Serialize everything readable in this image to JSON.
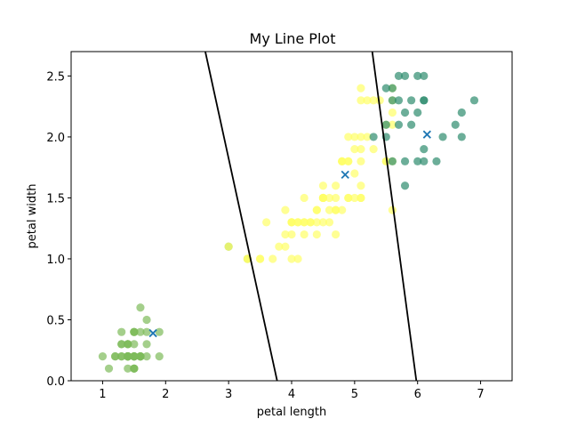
{
  "chart_data": {
    "type": "scatter",
    "title": "My Line Plot",
    "xlabel": "petal length",
    "ylabel": "petal width",
    "xlim": [
      0.5,
      7.5
    ],
    "ylim": [
      0.0,
      2.7
    ],
    "xticks": [
      1,
      2,
      3,
      4,
      5,
      6,
      7
    ],
    "yticks": [
      0.0,
      0.5,
      1.0,
      1.5,
      2.0,
      2.5
    ],
    "grid": false,
    "series": [
      {
        "color": "#7dbb5a",
        "points": [
          [
            1.4,
            0.2
          ],
          [
            1.4,
            0.2
          ],
          [
            1.3,
            0.2
          ],
          [
            1.5,
            0.2
          ],
          [
            1.4,
            0.2
          ],
          [
            1.7,
            0.4
          ],
          [
            1.4,
            0.3
          ],
          [
            1.5,
            0.2
          ],
          [
            1.4,
            0.2
          ],
          [
            1.5,
            0.1
          ],
          [
            1.5,
            0.2
          ],
          [
            1.6,
            0.2
          ],
          [
            1.4,
            0.1
          ],
          [
            1.1,
            0.1
          ],
          [
            1.2,
            0.2
          ],
          [
            1.5,
            0.4
          ],
          [
            1.3,
            0.4
          ],
          [
            1.4,
            0.3
          ],
          [
            1.7,
            0.3
          ],
          [
            1.5,
            0.3
          ],
          [
            1.7,
            0.2
          ],
          [
            1.5,
            0.4
          ],
          [
            1.0,
            0.2
          ],
          [
            1.7,
            0.5
          ],
          [
            1.9,
            0.2
          ],
          [
            1.6,
            0.2
          ],
          [
            1.6,
            0.4
          ],
          [
            1.5,
            0.2
          ],
          [
            1.4,
            0.2
          ],
          [
            1.6,
            0.2
          ],
          [
            1.6,
            0.2
          ],
          [
            1.5,
            0.4
          ],
          [
            1.5,
            0.1
          ],
          [
            1.4,
            0.2
          ],
          [
            1.5,
            0.1
          ],
          [
            1.2,
            0.2
          ],
          [
            1.3,
            0.2
          ],
          [
            1.3,
            0.3
          ],
          [
            1.3,
            0.3
          ],
          [
            1.6,
            0.6
          ],
          [
            1.9,
            0.4
          ],
          [
            1.4,
            0.3
          ],
          [
            1.6,
            0.2
          ],
          [
            1.4,
            0.2
          ],
          [
            1.5,
            0.2
          ],
          [
            1.4,
            0.2
          ],
          [
            3.0,
            1.1
          ],
          [
            3.3,
            1.0
          ]
        ]
      },
      {
        "color": "#ffff66",
        "points": [
          [
            4.7,
            1.4
          ],
          [
            4.5,
            1.5
          ],
          [
            4.9,
            1.5
          ],
          [
            4.0,
            1.3
          ],
          [
            4.6,
            1.5
          ],
          [
            4.5,
            1.3
          ],
          [
            4.7,
            1.6
          ],
          [
            3.3,
            1.0
          ],
          [
            4.6,
            1.3
          ],
          [
            3.9,
            1.4
          ],
          [
            3.5,
            1.0
          ],
          [
            4.2,
            1.5
          ],
          [
            4.0,
            1.0
          ],
          [
            4.7,
            1.4
          ],
          [
            3.6,
            1.3
          ],
          [
            4.4,
            1.4
          ],
          [
            4.5,
            1.5
          ],
          [
            4.1,
            1.0
          ],
          [
            4.5,
            1.5
          ],
          [
            3.9,
            1.1
          ],
          [
            4.8,
            1.8
          ],
          [
            4.0,
            1.3
          ],
          [
            4.9,
            1.5
          ],
          [
            4.7,
            1.2
          ],
          [
            4.3,
            1.3
          ],
          [
            4.4,
            1.4
          ],
          [
            4.8,
            1.4
          ],
          [
            5.0,
            1.7
          ],
          [
            4.5,
            1.5
          ],
          [
            3.5,
            1.0
          ],
          [
            3.8,
            1.1
          ],
          [
            3.7,
            1.0
          ],
          [
            3.9,
            1.2
          ],
          [
            5.1,
            1.6
          ],
          [
            4.5,
            1.5
          ],
          [
            4.5,
            1.6
          ],
          [
            4.7,
            1.5
          ],
          [
            4.4,
            1.3
          ],
          [
            4.1,
            1.3
          ],
          [
            4.0,
            1.3
          ],
          [
            4.4,
            1.2
          ],
          [
            4.6,
            1.4
          ],
          [
            4.0,
            1.2
          ],
          [
            3.3,
            1.0
          ],
          [
            4.2,
            1.3
          ],
          [
            4.2,
            1.2
          ],
          [
            4.2,
            1.3
          ],
          [
            4.3,
            1.3
          ],
          [
            3.0,
            1.1
          ],
          [
            4.1,
            1.3
          ],
          [
            5.1,
            2.4
          ],
          [
            5.1,
            1.9
          ],
          [
            5.3,
            2.3
          ],
          [
            5.1,
            2.0
          ],
          [
            5.0,
            2.0
          ],
          [
            5.1,
            1.5
          ],
          [
            5.5,
            1.8
          ],
          [
            5.0,
            1.5
          ],
          [
            5.1,
            2.3
          ],
          [
            5.2,
            2.3
          ],
          [
            5.0,
            1.9
          ],
          [
            5.2,
            2.0
          ],
          [
            5.4,
            2.3
          ],
          [
            5.1,
            1.8
          ],
          [
            5.6,
            1.4
          ],
          [
            4.9,
            1.8
          ],
          [
            4.8,
            1.8
          ],
          [
            4.9,
            2.0
          ],
          [
            5.3,
            1.9
          ],
          [
            4.9,
            1.8
          ],
          [
            5.5,
            2.1
          ],
          [
            5.5,
            1.8
          ],
          [
            5.6,
            1.8
          ],
          [
            5.6,
            2.2
          ],
          [
            5.6,
            2.1
          ],
          [
            5.6,
            2.4
          ],
          [
            4.8,
            1.8
          ],
          [
            5.6,
            2.3
          ],
          [
            5.1,
            1.5
          ]
        ]
      },
      {
        "color": "#2e8b6e",
        "points": [
          [
            6.0,
            2.5
          ],
          [
            5.9,
            2.1
          ],
          [
            5.6,
            1.8
          ],
          [
            5.8,
            2.2
          ],
          [
            6.6,
            2.1
          ],
          [
            6.3,
            1.8
          ],
          [
            5.8,
            1.8
          ],
          [
            6.1,
            2.5
          ],
          [
            5.3,
            2.0
          ],
          [
            5.5,
            2.1
          ],
          [
            5.5,
            2.4
          ],
          [
            5.5,
            2.0
          ],
          [
            5.7,
            2.3
          ],
          [
            6.7,
            2.2
          ],
          [
            6.9,
            2.3
          ],
          [
            6.7,
            2.0
          ],
          [
            5.7,
            2.1
          ],
          [
            6.1,
            1.8
          ],
          [
            6.0,
            1.8
          ],
          [
            5.8,
            1.6
          ],
          [
            6.1,
            1.9
          ],
          [
            6.4,
            2.0
          ],
          [
            5.6,
            2.4
          ],
          [
            6.1,
            2.3
          ],
          [
            6.0,
            2.2
          ],
          [
            6.1,
            2.3
          ],
          [
            5.9,
            2.3
          ],
          [
            5.7,
            2.5
          ],
          [
            5.6,
            2.3
          ],
          [
            5.8,
            2.5
          ]
        ]
      }
    ],
    "centroids": {
      "color": "#1f77b4",
      "marker": "x",
      "points": [
        [
          1.8,
          0.39
        ],
        [
          4.85,
          1.69
        ],
        [
          6.15,
          2.02
        ]
      ]
    },
    "lines": [
      {
        "color": "#000000",
        "points": [
          [
            2.63,
            2.7
          ],
          [
            3.77,
            0.0
          ]
        ]
      },
      {
        "color": "#000000",
        "points": [
          [
            5.28,
            2.7
          ],
          [
            5.98,
            0.0
          ]
        ]
      }
    ]
  }
}
